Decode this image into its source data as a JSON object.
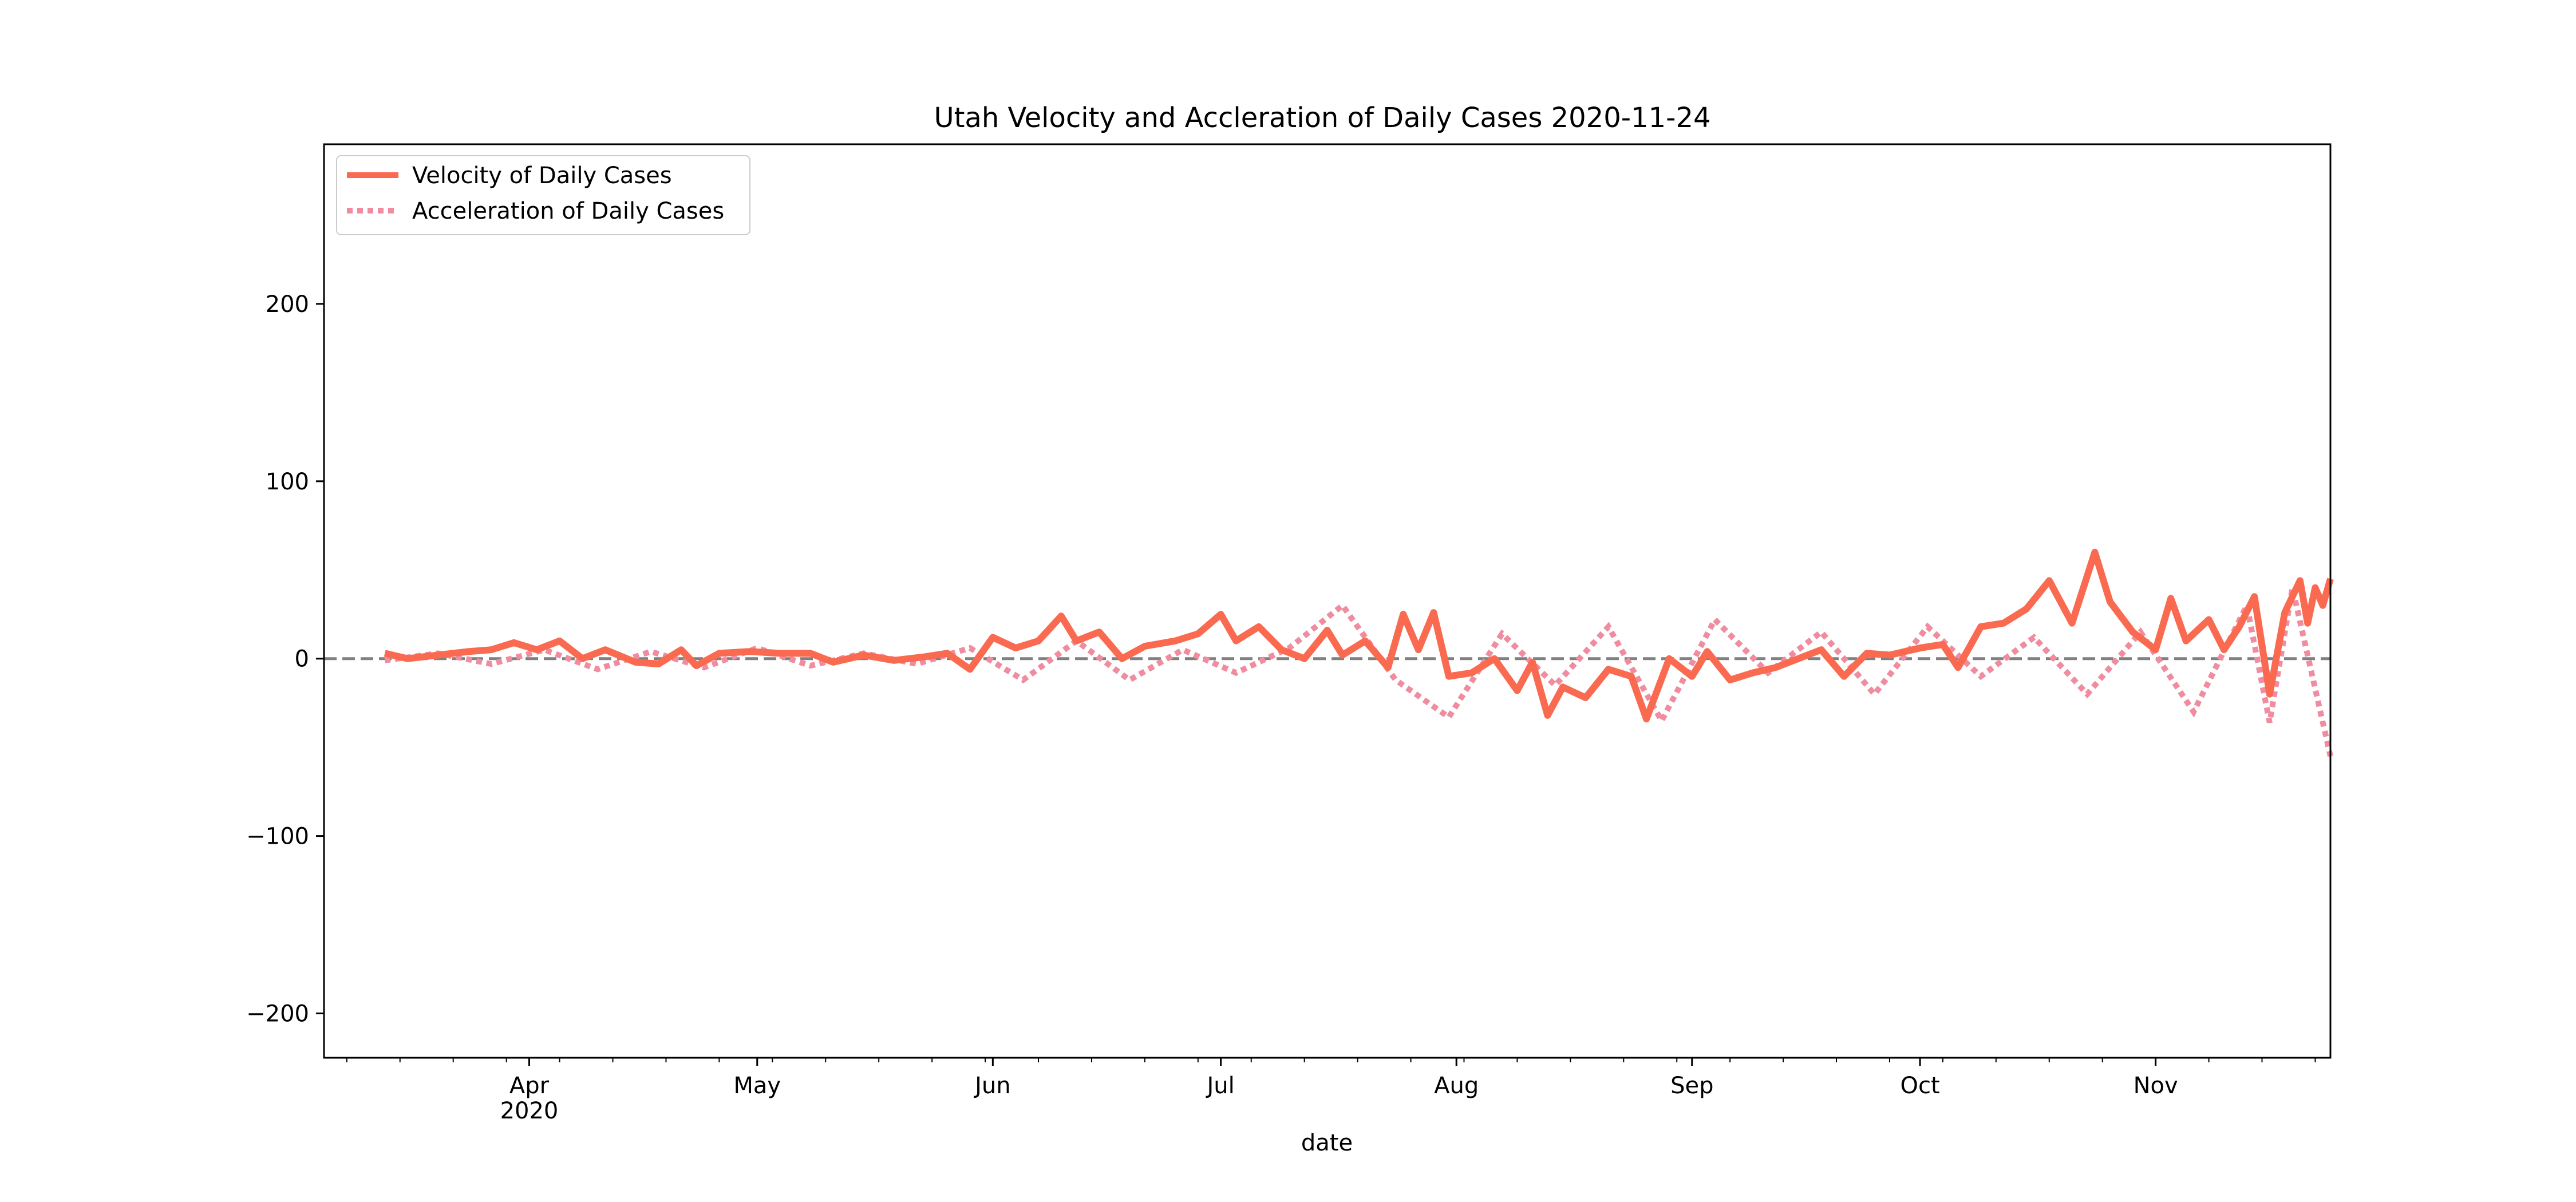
{
  "chart_data": {
    "type": "line",
    "title": "Utah Velocity and Accleration of Daily Cases 2020-11-24",
    "xlabel": "date",
    "ylabel": "",
    "x_range": [
      "2020-03-05",
      "2020-11-24"
    ],
    "ylim": [
      -225,
      290
    ],
    "y_ticks": [
      -200,
      -100,
      0,
      100,
      200
    ],
    "y_tick_labels": [
      "−200",
      "−100",
      "0",
      "100",
      "200"
    ],
    "x_ticks": [
      {
        "date": "2020-04-01",
        "label": "Apr",
        "sublabel": "2020"
      },
      {
        "date": "2020-05-01",
        "label": "May",
        "sublabel": ""
      },
      {
        "date": "2020-06-01",
        "label": "Jun",
        "sublabel": ""
      },
      {
        "date": "2020-07-01",
        "label": "Jul",
        "sublabel": ""
      },
      {
        "date": "2020-08-01",
        "label": "Aug",
        "sublabel": ""
      },
      {
        "date": "2020-09-01",
        "label": "Sep",
        "sublabel": ""
      },
      {
        "date": "2020-10-01",
        "label": "Oct",
        "sublabel": ""
      },
      {
        "date": "2020-11-01",
        "label": "Nov",
        "sublabel": ""
      }
    ],
    "zero_line": {
      "y": 0,
      "color": "#808080",
      "style": "dashed"
    },
    "grid": false,
    "legend_position": "top-left",
    "series": [
      {
        "name": "Velocity of Daily Cases",
        "color": "#fa6a50",
        "style": "solid",
        "points": [
          [
            "2020-03-13",
            3
          ],
          [
            "2020-03-16",
            0
          ],
          [
            "2020-03-20",
            2
          ],
          [
            "2020-03-24",
            4
          ],
          [
            "2020-03-27",
            5
          ],
          [
            "2020-03-30",
            9
          ],
          [
            "2020-04-02",
            5
          ],
          [
            "2020-04-05",
            10
          ],
          [
            "2020-04-08",
            0
          ],
          [
            "2020-04-11",
            5
          ],
          [
            "2020-04-15",
            -2
          ],
          [
            "2020-04-18",
            -3
          ],
          [
            "2020-04-21",
            5
          ],
          [
            "2020-04-23",
            -4
          ],
          [
            "2020-04-26",
            3
          ],
          [
            "2020-04-30",
            4
          ],
          [
            "2020-05-04",
            3
          ],
          [
            "2020-05-08",
            3
          ],
          [
            "2020-05-11",
            -2
          ],
          [
            "2020-05-15",
            2
          ],
          [
            "2020-05-19",
            -1
          ],
          [
            "2020-05-23",
            1
          ],
          [
            "2020-05-26",
            3
          ],
          [
            "2020-05-29",
            -6
          ],
          [
            "2020-06-01",
            12
          ],
          [
            "2020-06-04",
            6
          ],
          [
            "2020-06-07",
            10
          ],
          [
            "2020-06-10",
            24
          ],
          [
            "2020-06-12",
            10
          ],
          [
            "2020-06-15",
            15
          ],
          [
            "2020-06-18",
            0
          ],
          [
            "2020-06-21",
            7
          ],
          [
            "2020-06-25",
            10
          ],
          [
            "2020-06-28",
            14
          ],
          [
            "2020-07-01",
            25
          ],
          [
            "2020-07-03",
            10
          ],
          [
            "2020-07-06",
            18
          ],
          [
            "2020-07-09",
            5
          ],
          [
            "2020-07-12",
            0
          ],
          [
            "2020-07-15",
            16
          ],
          [
            "2020-07-17",
            2
          ],
          [
            "2020-07-20",
            10
          ],
          [
            "2020-07-23",
            -5
          ],
          [
            "2020-07-25",
            25
          ],
          [
            "2020-07-27",
            5
          ],
          [
            "2020-07-29",
            26
          ],
          [
            "2020-07-31",
            -10
          ],
          [
            "2020-08-03",
            -8
          ],
          [
            "2020-08-06",
            0
          ],
          [
            "2020-08-09",
            -18
          ],
          [
            "2020-08-11",
            -2
          ],
          [
            "2020-08-13",
            -32
          ],
          [
            "2020-08-15",
            -16
          ],
          [
            "2020-08-18",
            -22
          ],
          [
            "2020-08-21",
            -6
          ],
          [
            "2020-08-24",
            -10
          ],
          [
            "2020-08-26",
            -34
          ],
          [
            "2020-08-29",
            0
          ],
          [
            "2020-09-01",
            -10
          ],
          [
            "2020-09-03",
            4
          ],
          [
            "2020-09-06",
            -12
          ],
          [
            "2020-09-09",
            -8
          ],
          [
            "2020-09-12",
            -5
          ],
          [
            "2020-09-15",
            0
          ],
          [
            "2020-09-18",
            5
          ],
          [
            "2020-09-21",
            -10
          ],
          [
            "2020-09-24",
            3
          ],
          [
            "2020-09-27",
            2
          ],
          [
            "2020-10-01",
            6
          ],
          [
            "2020-10-04",
            8
          ],
          [
            "2020-10-06",
            -5
          ],
          [
            "2020-10-09",
            18
          ],
          [
            "2020-10-12",
            20
          ],
          [
            "2020-10-15",
            28
          ],
          [
            "2020-10-18",
            44
          ],
          [
            "2020-10-21",
            20
          ],
          [
            "2020-10-24",
            60
          ],
          [
            "2020-10-26",
            32
          ],
          [
            "2020-10-29",
            15
          ],
          [
            "2020-11-01",
            5
          ],
          [
            "2020-11-03",
            34
          ],
          [
            "2020-11-05",
            10
          ],
          [
            "2020-11-08",
            22
          ],
          [
            "2020-11-10",
            5
          ],
          [
            "2020-11-12",
            18
          ],
          [
            "2020-11-14",
            35
          ],
          [
            "2020-11-16",
            -20
          ],
          [
            "2020-11-18",
            26
          ],
          [
            "2020-11-20",
            44
          ],
          [
            "2020-11-21",
            20
          ],
          [
            "2020-11-22",
            40
          ],
          [
            "2020-11-23",
            30
          ],
          [
            "2020-11-24",
            45
          ]
        ]
      },
      {
        "name": "Acceleration of Daily Cases",
        "color": "#f08ca0",
        "style": "dotted",
        "points": [
          [
            "2020-03-13",
            -1
          ],
          [
            "2020-03-20",
            3
          ],
          [
            "2020-03-27",
            -3
          ],
          [
            "2020-04-03",
            5
          ],
          [
            "2020-04-10",
            -6
          ],
          [
            "2020-04-17",
            4
          ],
          [
            "2020-04-24",
            -5
          ],
          [
            "2020-05-01",
            6
          ],
          [
            "2020-05-08",
            -4
          ],
          [
            "2020-05-15",
            3
          ],
          [
            "2020-05-22",
            -3
          ],
          [
            "2020-05-29",
            6
          ],
          [
            "2020-06-05",
            -12
          ],
          [
            "2020-06-12",
            10
          ],
          [
            "2020-06-19",
            -12
          ],
          [
            "2020-06-26",
            5
          ],
          [
            "2020-07-03",
            -8
          ],
          [
            "2020-07-10",
            6
          ],
          [
            "2020-07-17",
            30
          ],
          [
            "2020-07-24",
            -12
          ],
          [
            "2020-07-31",
            -33
          ],
          [
            "2020-08-07",
            14
          ],
          [
            "2020-08-14",
            -15
          ],
          [
            "2020-08-21",
            18
          ],
          [
            "2020-08-28",
            -35
          ],
          [
            "2020-09-04",
            22
          ],
          [
            "2020-09-11",
            -8
          ],
          [
            "2020-09-18",
            15
          ],
          [
            "2020-09-25",
            -20
          ],
          [
            "2020-10-02",
            18
          ],
          [
            "2020-10-09",
            -10
          ],
          [
            "2020-10-16",
            12
          ],
          [
            "2020-10-23",
            -20
          ],
          [
            "2020-10-30",
            15
          ],
          [
            "2020-11-06",
            -30
          ],
          [
            "2020-11-13",
            30
          ],
          [
            "2020-11-16",
            -36
          ],
          [
            "2020-11-19",
            40
          ],
          [
            "2020-11-24",
            -55
          ]
        ]
      }
    ]
  }
}
